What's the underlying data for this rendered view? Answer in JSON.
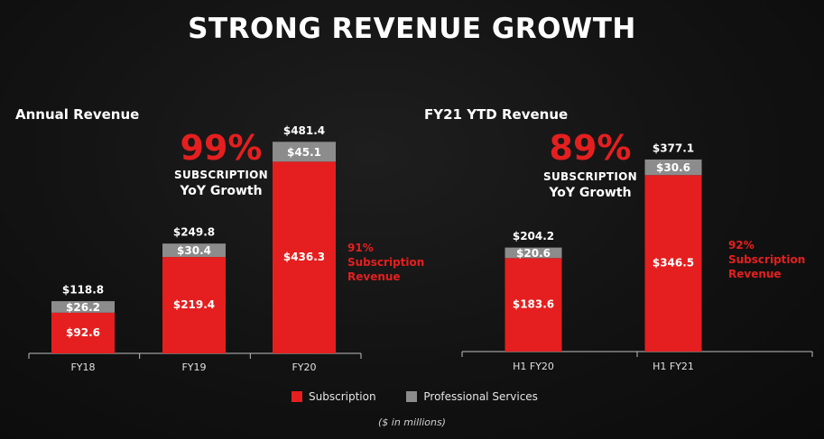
{
  "title": "STRONG REVENUE GROWTH",
  "colors": {
    "subscription": "#e51f1f",
    "professional_services": "#8c8c8c",
    "accent_red": "#e51f1f",
    "axis": "#bfbfbf"
  },
  "annual": {
    "panel_title": "Annual Revenue",
    "growth_pct": "99%",
    "growth_line1": "SUBSCRIPTION",
    "growth_line2": "YoY Growth",
    "note_line1": "91%",
    "note_line2": "Subscription",
    "note_line3": "Revenue"
  },
  "ytd": {
    "panel_title": "FY21 YTD Revenue",
    "growth_pct": "89%",
    "growth_line1": "SUBSCRIPTION",
    "growth_line2": "YoY Growth",
    "note_line1": "92%",
    "note_line2": "Subscription",
    "note_line3": "Revenue"
  },
  "legend": {
    "subscription": "Subscription",
    "professional_services": "Professional Services"
  },
  "footnote": "($ in millions)",
  "chart_data": [
    {
      "type": "bar",
      "stacked": true,
      "title": "Annual Revenue",
      "categories": [
        "FY18",
        "FY19",
        "FY20"
      ],
      "series": [
        {
          "name": "Subscription",
          "values": [
            92.6,
            219.4,
            436.3
          ],
          "labels": [
            "$92.6",
            "$219.4",
            "$436.3"
          ]
        },
        {
          "name": "Professional Services",
          "values": [
            26.2,
            30.4,
            45.1
          ],
          "labels": [
            "$26.2",
            "$30.4",
            "$45.1"
          ]
        }
      ],
      "totals": [
        118.8,
        249.8,
        481.4
      ],
      "total_labels": [
        "$118.8",
        "$249.8",
        "$481.4"
      ],
      "ylim": [
        0,
        500
      ]
    },
    {
      "type": "bar",
      "stacked": true,
      "title": "FY21 YTD Revenue",
      "categories": [
        "H1 FY20",
        "H1 FY21"
      ],
      "series": [
        {
          "name": "Subscription",
          "values": [
            183.6,
            346.5
          ],
          "labels": [
            "$183.6",
            "$346.5"
          ]
        },
        {
          "name": "Professional Services",
          "values": [
            20.6,
            30.6
          ],
          "labels": [
            "$20.6",
            "$30.6"
          ]
        }
      ],
      "totals": [
        204.2,
        377.1
      ],
      "total_labels": [
        "$204.2",
        "$377.1"
      ],
      "ylim": [
        0,
        400
      ]
    }
  ]
}
